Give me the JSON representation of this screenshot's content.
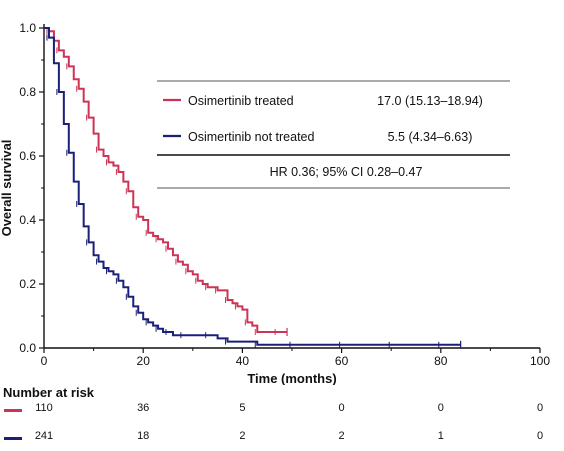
{
  "colors": {
    "treated": "#cc3355",
    "not_treated": "#1a1f7a"
  },
  "chart_data": {
    "type": "line",
    "xlabel": "Time (months)",
    "ylabel": "Overall survival",
    "xlim": [
      0,
      100
    ],
    "ylim": [
      0,
      1.0
    ],
    "x_ticks": [
      "0",
      "20",
      "40",
      "60",
      "80",
      "100"
    ],
    "y_ticks": [
      "0.0",
      "0.2",
      "0.4",
      "0.6",
      "0.8",
      "1.0"
    ],
    "legend": {
      "rows": [
        {
          "label": "Osimertinib treated",
          "value": "17.0 (15.13–18.94)",
          "series": "treated"
        },
        {
          "label": "Osimertinib not treated",
          "value": "5.5 (4.34–6.63)",
          "series": "not_treated"
        }
      ],
      "hr": "HR 0.36; 95% CI 0.28–0.47"
    },
    "series": [
      {
        "key": "treated",
        "name": "Osimertinib treated",
        "x": [
          0,
          1,
          2,
          3,
          4,
          5,
          6,
          7,
          8,
          9,
          10,
          11,
          12,
          13,
          14,
          15,
          16,
          17,
          18,
          19,
          20,
          21,
          22,
          23,
          24,
          25,
          26,
          27,
          28,
          29,
          30,
          31,
          32,
          33,
          34,
          35,
          36,
          37,
          38,
          39,
          40,
          41,
          42,
          43,
          45,
          47,
          49
        ],
        "y": [
          1.0,
          0.99,
          0.96,
          0.93,
          0.91,
          0.88,
          0.84,
          0.81,
          0.77,
          0.72,
          0.67,
          0.62,
          0.6,
          0.58,
          0.57,
          0.55,
          0.52,
          0.49,
          0.44,
          0.41,
          0.4,
          0.36,
          0.35,
          0.34,
          0.33,
          0.31,
          0.29,
          0.27,
          0.26,
          0.24,
          0.23,
          0.21,
          0.2,
          0.19,
          0.19,
          0.18,
          0.18,
          0.15,
          0.14,
          0.13,
          0.12,
          0.08,
          0.07,
          0.05,
          0.05,
          0.05,
          0.05
        ]
      },
      {
        "key": "not_treated",
        "name": "Osimertinib not treated",
        "x": [
          0,
          1,
          2,
          3,
          4,
          5,
          6,
          7,
          8,
          9,
          10,
          11,
          12,
          13,
          14,
          15,
          16,
          17,
          18,
          19,
          20,
          21,
          22,
          23,
          24,
          25,
          26,
          28,
          30,
          33,
          35,
          37,
          40,
          43,
          46,
          50,
          55,
          60,
          65,
          70,
          75,
          80,
          84
        ],
        "y": [
          1.0,
          0.97,
          0.89,
          0.8,
          0.7,
          0.61,
          0.52,
          0.45,
          0.38,
          0.33,
          0.29,
          0.27,
          0.25,
          0.24,
          0.23,
          0.21,
          0.19,
          0.16,
          0.13,
          0.11,
          0.09,
          0.08,
          0.07,
          0.06,
          0.05,
          0.05,
          0.04,
          0.04,
          0.04,
          0.04,
          0.03,
          0.02,
          0.02,
          0.01,
          0.01,
          0.01,
          0.01,
          0.01,
          0.01,
          0.01,
          0.01,
          0.01,
          0.01
        ]
      }
    ]
  },
  "risk_table": {
    "title": "Number at risk",
    "times": [
      0,
      20,
      40,
      60,
      80,
      100
    ],
    "rows": [
      {
        "series": "treated",
        "values": [
          "110",
          "36",
          "5",
          "0",
          "0",
          "0"
        ]
      },
      {
        "series": "not_treated",
        "values": [
          "241",
          "18",
          "2",
          "2",
          "1",
          "0"
        ]
      }
    ]
  }
}
